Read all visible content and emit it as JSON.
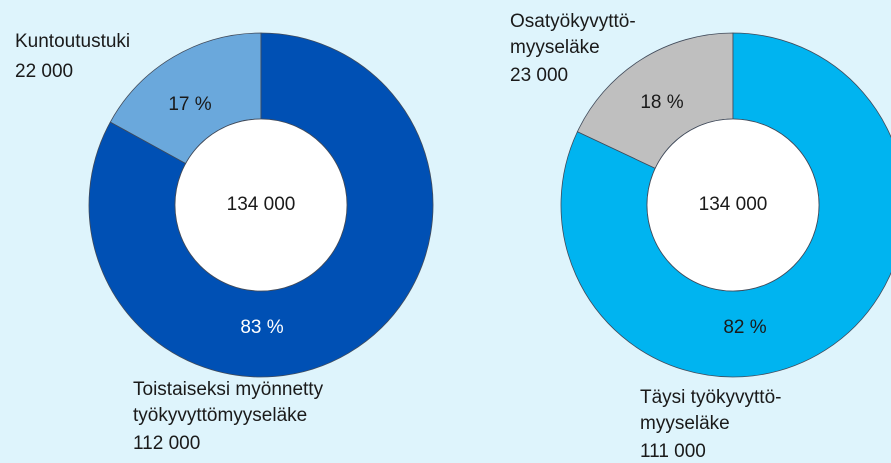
{
  "chart_data": [
    {
      "type": "pie",
      "donut": true,
      "categories": [
        [
          "Kuntoutustuki"
        ],
        [
          "Toistaiseksi myönnetty",
          "työkyvyttömyyseläke"
        ]
      ],
      "values": [
        17,
        83
      ],
      "value_labels": [
        "17 %",
        "83 %"
      ],
      "counts": [
        22000,
        112000
      ],
      "count_labels": [
        "22 000",
        "112 000"
      ],
      "total": {
        "value": 134000,
        "label": "134 000"
      },
      "colors": [
        "#6aa8dc",
        "#0050b4"
      ],
      "value_label_colors": [
        "#1a1a1a",
        "#ffffff"
      ]
    },
    {
      "type": "pie",
      "donut": true,
      "categories": [
        [
          "Osatyökyvyttö-",
          "myyseläke"
        ],
        [
          "Täysi työkyvyttö-",
          "myyseläke"
        ]
      ],
      "values": [
        18,
        82
      ],
      "value_labels": [
        "18 %",
        "82 %"
      ],
      "counts": [
        23000,
        111000
      ],
      "count_labels": [
        "23 000",
        "111 000"
      ],
      "total": {
        "value": 134000,
        "label": "134 000"
      },
      "colors": [
        "#bfbfbf",
        "#00b4f0"
      ],
      "value_label_colors": [
        "#1a1a1a",
        "#1a1a1a"
      ]
    }
  ]
}
